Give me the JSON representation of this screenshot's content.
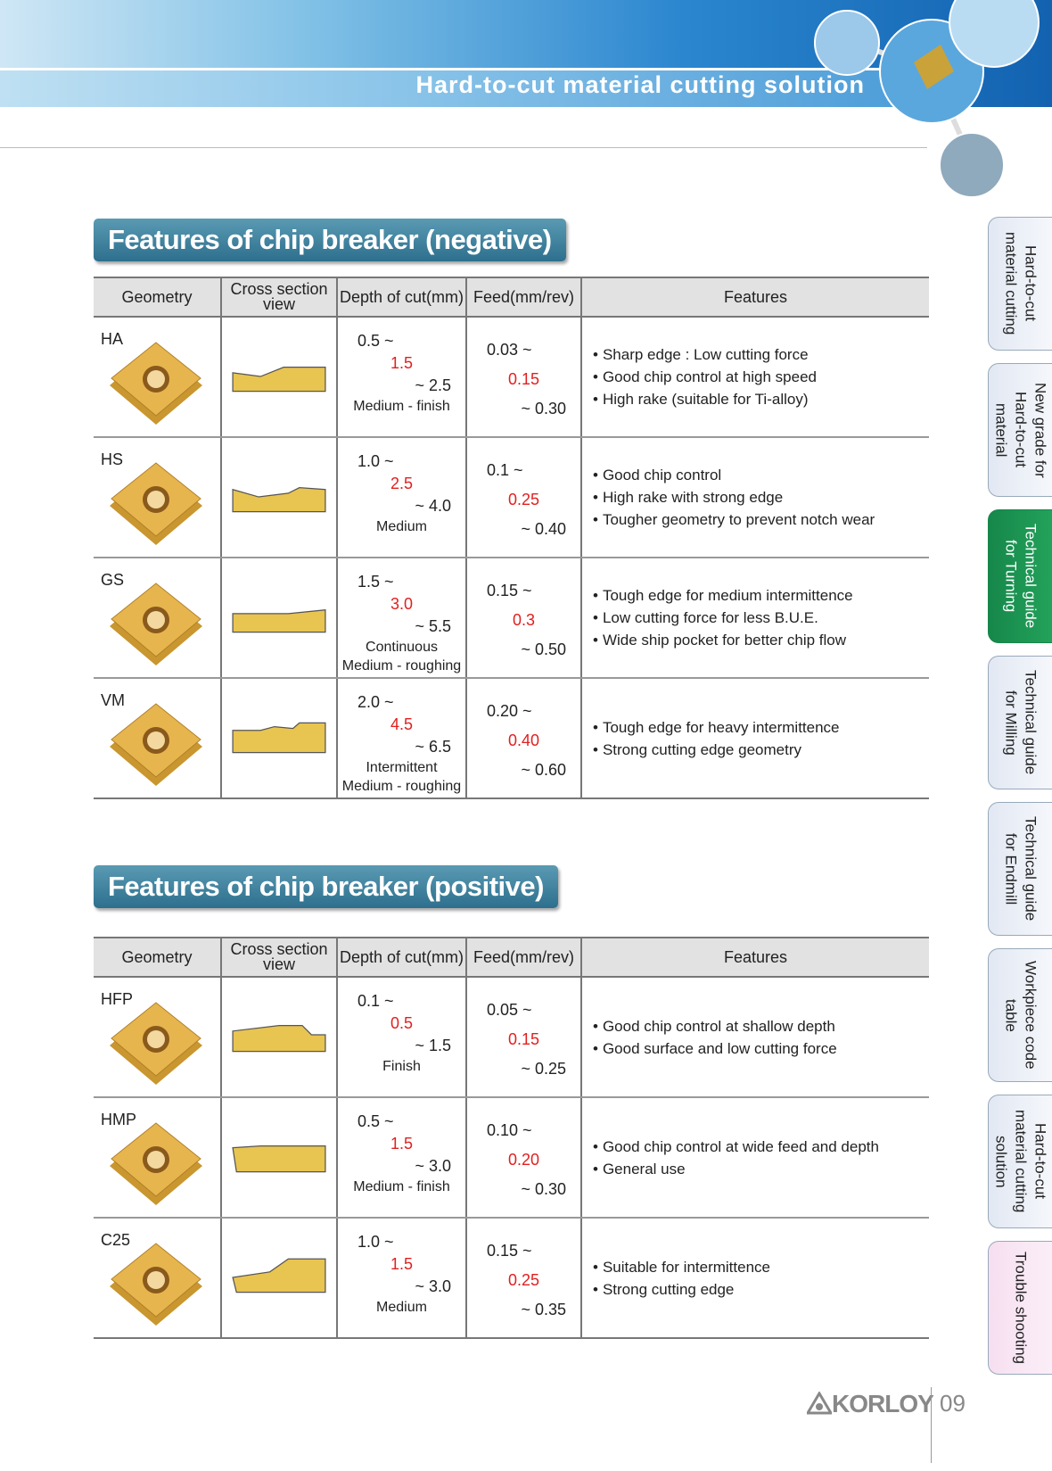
{
  "header": {
    "title": "Hard-to-cut material cutting solution"
  },
  "sections": [
    {
      "title": "Features of chip breaker (negative)",
      "columns": [
        "Geometry",
        "Cross section view",
        "Depth of cut(mm)",
        "Feed(mm/rev)",
        "Features"
      ],
      "rows": [
        {
          "geometry": "HA",
          "depth": {
            "min": "0.5 ~",
            "rec": "1.5",
            "max": "~ 2.5",
            "use": [
              "Medium - finish"
            ]
          },
          "feed": {
            "min": "0.03 ~",
            "rec": "0.15",
            "max": "~ 0.30"
          },
          "features": [
            "Sharp edge : Low cutting force",
            "Good chip control at high speed",
            "High rake (suitable for Ti-alloy)"
          ]
        },
        {
          "geometry": "HS",
          "depth": {
            "min": "1.0 ~",
            "rec": "2.5",
            "max": "~ 4.0",
            "use": [
              "Medium"
            ]
          },
          "feed": {
            "min": "0.1 ~",
            "rec": "0.25",
            "max": "~ 0.40"
          },
          "features": [
            "Good chip control",
            "High rake with strong edge",
            "Tougher geometry to prevent notch wear"
          ]
        },
        {
          "geometry": "GS",
          "depth": {
            "min": "1.5 ~",
            "rec": "3.0",
            "max": "~ 5.5",
            "use": [
              "Continuous",
              "Medium - roughing"
            ]
          },
          "feed": {
            "min": "0.15 ~",
            "rec": "0.3",
            "max": "~ 0.50"
          },
          "features": [
            "Tough edge for medium intermittence",
            "Low cutting force for less B.U.E.",
            "Wide ship pocket for better chip flow"
          ]
        },
        {
          "geometry": "VM",
          "depth": {
            "min": "2.0 ~",
            "rec": "4.5",
            "max": "~ 6.5",
            "use": [
              "Intermittent",
              "Medium - roughing"
            ]
          },
          "feed": {
            "min": "0.20 ~",
            "rec": "0.40",
            "max": "~ 0.60"
          },
          "features": [
            "Tough edge for heavy intermittence",
            "Strong cutting edge geometry"
          ]
        }
      ]
    },
    {
      "title": "Features of chip breaker (positive)",
      "columns": [
        "Geometry",
        "Cross section view",
        "Depth of cut(mm)",
        "Feed(mm/rev)",
        "Features"
      ],
      "rows": [
        {
          "geometry": "HFP",
          "depth": {
            "min": "0.1 ~",
            "rec": "0.5",
            "max": "~ 1.5",
            "use": [
              "Finish"
            ]
          },
          "feed": {
            "min": "0.05 ~",
            "rec": "0.15",
            "max": "~ 0.25"
          },
          "features": [
            "Good chip control at shallow depth",
            "Good surface and low cutting force"
          ]
        },
        {
          "geometry": "HMP",
          "depth": {
            "min": "0.5 ~",
            "rec": "1.5",
            "max": "~ 3.0",
            "use": [
              "Medium - finish"
            ]
          },
          "feed": {
            "min": "0.10 ~",
            "rec": "0.20",
            "max": "~ 0.30"
          },
          "features": [
            "Good chip control at wide feed and depth",
            "General use"
          ]
        },
        {
          "geometry": "C25",
          "depth": {
            "min": "1.0 ~",
            "rec": "1.5",
            "max": "~ 3.0",
            "use": [
              "Medium"
            ]
          },
          "feed": {
            "min": "0.15 ~",
            "rec": "0.25",
            "max": "~ 0.35"
          },
          "features": [
            "Suitable for intermittence",
            "Strong cutting edge"
          ]
        }
      ]
    }
  ],
  "tabs": [
    "Hard-to-cut material cutting",
    "New grade for Hard-to-cut material",
    "Technical guide for Turning",
    "Technical guide for Milling",
    "Technical guide for Endmill",
    "Workpiece code table",
    "Hard-to-cut material cutting solution",
    "Trouble shooting"
  ],
  "footer": {
    "brand": "KORLOY",
    "page": "09"
  }
}
